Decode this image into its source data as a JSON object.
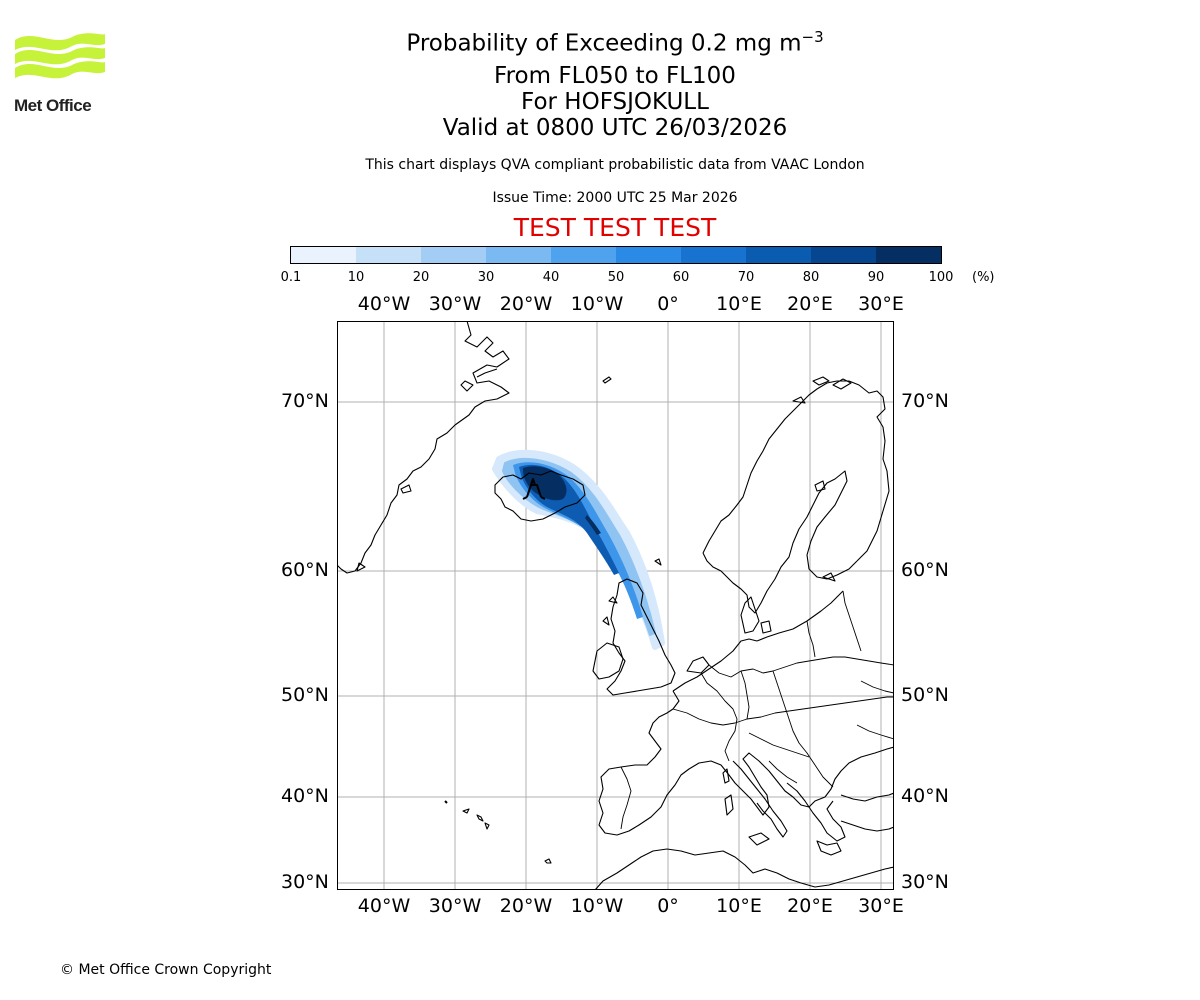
{
  "logo": {
    "text": "Met Office"
  },
  "title": {
    "line1_prefix": "Probability of Exceeding 0.2 mg m",
    "line1_exp": "−3",
    "line2": "From FL050 to FL100",
    "line3": "For HOFSJOKULL",
    "line4": "Valid at 0800 UTC 26/03/2026"
  },
  "info": "This chart displays QVA compliant probabilistic data from VAAC London",
  "issue_time": "Issue Time: 2000 UTC 25 Mar 2026",
  "test_banner": "TEST TEST TEST",
  "copyright": "© Met Office Crown Copyright",
  "colorbar": {
    "unit": "(%)",
    "ticks": [
      "0.1",
      "10",
      "20",
      "30",
      "40",
      "50",
      "60",
      "70",
      "80",
      "90",
      "100"
    ],
    "colors": [
      "#eaf3fd",
      "#c6e0f8",
      "#a3cdf4",
      "#7ab9f1",
      "#4ea2ee",
      "#2a8ae6",
      "#1872d0",
      "#0a5cb0",
      "#064690",
      "#052f62"
    ]
  },
  "map": {
    "lon_labels": [
      "40°W",
      "30°W",
      "20°W",
      "10°W",
      "0°",
      "10°E",
      "20°E",
      "30°E"
    ],
    "lat_labels": [
      "70°N",
      "60°N",
      "50°N",
      "40°N",
      "30°N"
    ],
    "volcano": "HOFSJOKULL",
    "plume_percent": {
      "levels": [
        10,
        30,
        50,
        70,
        90
      ],
      "description_of_extent": "north-west of Iceland across Iceland south-east toward northern Britain"
    }
  },
  "colors": {
    "accent_test": "#e00000",
    "logo_green": "#c6f23a",
    "grid": "#b0b0b0"
  }
}
